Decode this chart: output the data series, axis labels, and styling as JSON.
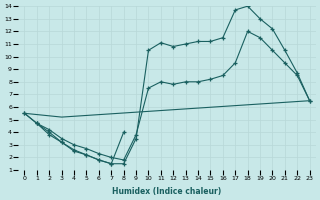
{
  "xlabel": "Humidex (Indice chaleur)",
  "bg_color": "#c8e8e8",
  "grid_color": "#b8d8d8",
  "line_color": "#1a6060",
  "xlim": [
    -0.5,
    23.5
  ],
  "ylim": [
    1,
    14
  ],
  "xticks": [
    0,
    1,
    2,
    3,
    4,
    5,
    6,
    7,
    8,
    9,
    10,
    11,
    12,
    13,
    14,
    15,
    16,
    17,
    18,
    19,
    20,
    21,
    22,
    23
  ],
  "yticks": [
    1,
    2,
    3,
    4,
    5,
    6,
    7,
    8,
    9,
    10,
    11,
    12,
    13,
    14
  ],
  "curve1_x": [
    0,
    1,
    2,
    3,
    4,
    5,
    6,
    7,
    8,
    9,
    10,
    11,
    12,
    13,
    14,
    15,
    16,
    17,
    18,
    19,
    20,
    21,
    22,
    23
  ],
  "curve1_y": [
    5.5,
    4.7,
    4.0,
    3.2,
    2.6,
    2.2,
    1.8,
    1.5,
    1.5,
    3.5,
    10.5,
    11.1,
    10.8,
    11.0,
    11.2,
    11.2,
    11.5,
    13.7,
    14.0,
    13.0,
    12.2,
    10.5,
    8.7,
    6.5
  ],
  "curve2_x": [
    0,
    1,
    2,
    3,
    4,
    5,
    6,
    7,
    8,
    9,
    10,
    11,
    12,
    13,
    14,
    15,
    16,
    17,
    18,
    19,
    20,
    21,
    22,
    23
  ],
  "curve2_y": [
    5.5,
    4.7,
    4.2,
    3.5,
    3.0,
    2.7,
    2.3,
    2.0,
    1.8,
    3.8,
    7.5,
    8.0,
    7.8,
    8.0,
    8.0,
    8.2,
    8.5,
    9.5,
    12.0,
    11.5,
    10.5,
    9.5,
    8.5,
    6.5
  ],
  "curve3_x": [
    0,
    3,
    23
  ],
  "curve3_y": [
    5.5,
    5.2,
    6.5
  ],
  "curve4_x": [
    1,
    2,
    3,
    4,
    5,
    6,
    7,
    8
  ],
  "curve4_y": [
    4.7,
    3.8,
    3.2,
    2.5,
    2.2,
    1.8,
    1.5,
    4.0
  ]
}
